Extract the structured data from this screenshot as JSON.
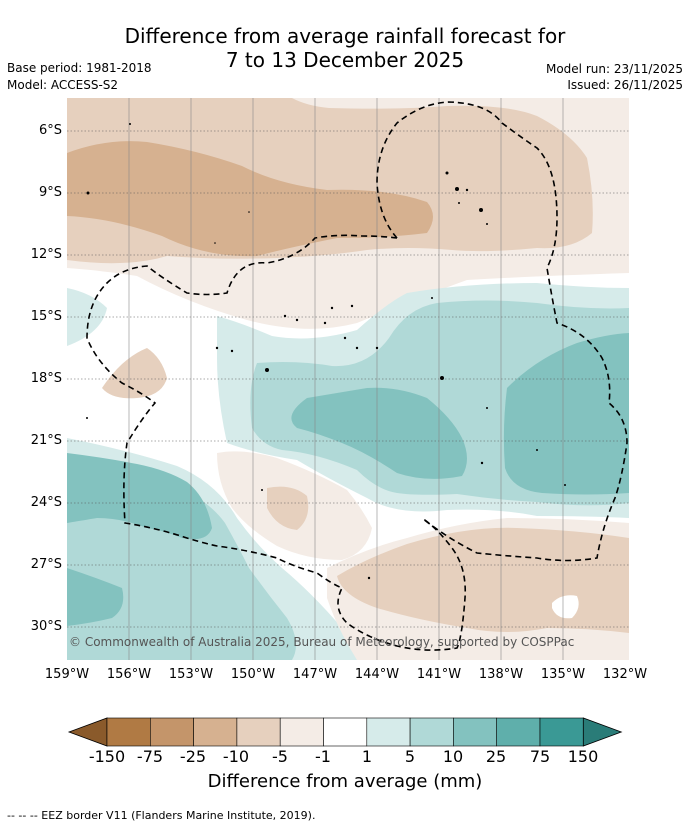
{
  "title_line1": "Difference from average rainfall forecast for",
  "title_line2": "7 to 13 December 2025",
  "base_period": "Base period: 1981-2018",
  "model": "Model: ACCESS-S2",
  "model_run": "Model run: 23/11/2025",
  "issued": "Issued: 26/11/2025",
  "copyright": "© Commonwealth of Australia 2025, Bureau of Meteorology, supported by COSPPac",
  "lat_labels": [
    "6°S",
    "9°S",
    "12°S",
    "15°S",
    "18°S",
    "21°S",
    "24°S",
    "27°S",
    "30°S"
  ],
  "lon_labels": [
    "159°W",
    "156°W",
    "153°W",
    "150°W",
    "147°W",
    "144°W",
    "141°W",
    "138°W",
    "135°W",
    "132°W"
  ],
  "colorbar": {
    "title": "Difference from average (mm)",
    "labels": [
      "-150",
      "-75",
      "-25",
      "-10",
      "-5",
      "-1",
      "1",
      "5",
      "10",
      "25",
      "75",
      "150"
    ],
    "colors": [
      "#8a5a2b",
      "#b07a44",
      "#c4956a",
      "#d6b190",
      "#e6d0be",
      "#f4ece6",
      "#ffffff",
      "#d6ebea",
      "#b0d9d7",
      "#83c2bf",
      "#5fafab",
      "#3a9995",
      "#2a7c78"
    ]
  },
  "legend_footer": "-- -- -- EEZ border V11 (Flanders Marine Institute, 2019)."
}
